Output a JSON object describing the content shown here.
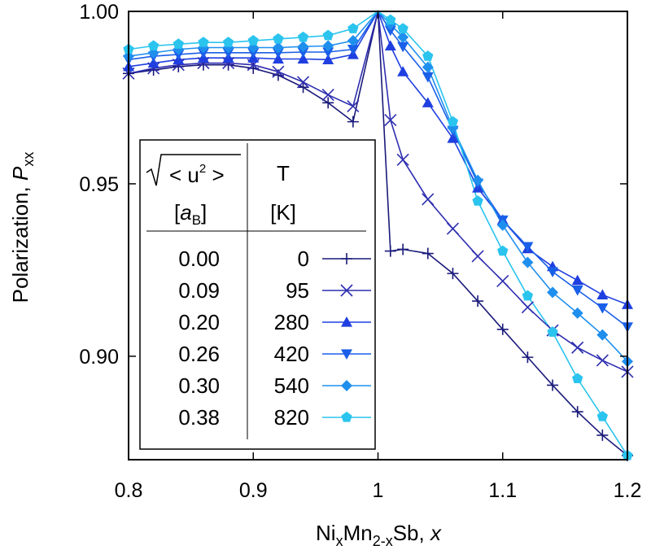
{
  "chart_data": {
    "type": "line",
    "xlabel_parts": {
      "base": "Ni",
      "sub1": "x",
      "mid": "Mn",
      "sub2": "2-x",
      "tail": "Sb, ",
      "var": "x"
    },
    "ylabel_parts": {
      "base": "Polarization, ",
      "var": "P",
      "sub": "xx"
    },
    "xlim": [
      0.8,
      1.2
    ],
    "ylim": [
      0.87,
      1.0
    ],
    "xticks": [
      0.8,
      0.9,
      1.0,
      1.1,
      1.2
    ],
    "xtick_labels": [
      "0.8",
      "0.9",
      "1",
      "1.1",
      "1.2"
    ],
    "yticks": [
      0.9,
      0.95,
      1.0
    ],
    "ytick_labels": [
      "0.90",
      "0.95",
      "1.00"
    ],
    "grid": false,
    "legend_placement": "lower-left",
    "legend": {
      "col1_header_top": "< u",
      "col1_header_sup": "2",
      "col1_header_close": " >",
      "col1_header_bottom_open": "[",
      "col1_header_bottom_var": "a",
      "col1_header_bottom_sub": "B",
      "col1_header_bottom_close": "]",
      "col2_header_top": "T",
      "col2_header_bottom": "[K]"
    },
    "series": [
      {
        "u": "0.00",
        "T": "0",
        "color": "#1a1a7a",
        "marker": "plus",
        "x": [
          0.8,
          0.82,
          0.84,
          0.86,
          0.88,
          0.9,
          0.92,
          0.94,
          0.96,
          0.98,
          1.0,
          1.01,
          1.02,
          1.04,
          1.06,
          1.08,
          1.1,
          1.12,
          1.14,
          1.16,
          1.18,
          1.2
        ],
        "y": [
          0.982,
          0.983,
          0.984,
          0.9845,
          0.9845,
          0.9835,
          0.9815,
          0.978,
          0.9735,
          0.968,
          1.0,
          0.9305,
          0.931,
          0.9298,
          0.924,
          0.916,
          0.9078,
          0.8997,
          0.8916,
          0.8839,
          0.8771,
          0.8712
        ]
      },
      {
        "u": "0.09",
        "T": "95",
        "color": "#2e2eb0",
        "marker": "x",
        "x": [
          0.8,
          0.82,
          0.84,
          0.86,
          0.88,
          0.9,
          0.92,
          0.94,
          0.96,
          0.98,
          1.0,
          1.01,
          1.02,
          1.04,
          1.06,
          1.08,
          1.1,
          1.12,
          1.14,
          1.16,
          1.18,
          1.2
        ],
        "y": [
          0.982,
          0.9835,
          0.9845,
          0.985,
          0.985,
          0.9845,
          0.9825,
          0.9795,
          0.9758,
          0.9725,
          1.0,
          0.9685,
          0.957,
          0.9455,
          0.937,
          0.929,
          0.9218,
          0.9142,
          0.9075,
          0.9025,
          0.8988,
          0.8955
        ]
      },
      {
        "u": "0.20",
        "T": "280",
        "color": "#1f3fe0",
        "marker": "triangle-up",
        "x": [
          0.8,
          0.82,
          0.84,
          0.86,
          0.88,
          0.9,
          0.92,
          0.94,
          0.96,
          0.98,
          1.0,
          1.01,
          1.02,
          1.04,
          1.06,
          1.08,
          1.1,
          1.12,
          1.14,
          1.16,
          1.18,
          1.2
        ],
        "y": [
          0.984,
          0.985,
          0.986,
          0.9865,
          0.9865,
          0.9865,
          0.9862,
          0.9862,
          0.986,
          0.9875,
          1.0,
          0.99,
          0.9825,
          0.9735,
          0.9632,
          0.9488,
          0.9395,
          0.9312,
          0.926,
          0.922,
          0.9178,
          0.915
        ]
      },
      {
        "u": "0.26",
        "T": "420",
        "color": "#1a5fe8",
        "marker": "triangle-down",
        "x": [
          0.8,
          0.82,
          0.84,
          0.86,
          0.88,
          0.9,
          0.92,
          0.94,
          0.96,
          0.98,
          1.0,
          1.01,
          1.02,
          1.04,
          1.06,
          1.08,
          1.1,
          1.12,
          1.14,
          1.16,
          1.18,
          1.2
        ],
        "y": [
          0.986,
          0.987,
          0.9875,
          0.988,
          0.988,
          0.988,
          0.988,
          0.9882,
          0.9882,
          0.989,
          1.0,
          0.9945,
          0.9898,
          0.981,
          0.9655,
          0.9502,
          0.9395,
          0.9318,
          0.9245,
          0.9192,
          0.914,
          0.9085
        ]
      },
      {
        "u": "0.30",
        "T": "540",
        "color": "#1f8fee",
        "marker": "diamond",
        "x": [
          0.8,
          0.82,
          0.84,
          0.86,
          0.88,
          0.9,
          0.92,
          0.94,
          0.96,
          0.98,
          1.0,
          1.01,
          1.02,
          1.04,
          1.06,
          1.08,
          1.1,
          1.12,
          1.14,
          1.16,
          1.18,
          1.2
        ],
        "y": [
          0.987,
          0.988,
          0.989,
          0.9895,
          0.9895,
          0.9895,
          0.9895,
          0.9898,
          0.99,
          0.9915,
          1.0,
          0.9962,
          0.9925,
          0.9838,
          0.9662,
          0.951,
          0.938,
          0.9272,
          0.9185,
          0.9125,
          0.9062,
          0.8985
        ]
      },
      {
        "u": "0.38",
        "T": "820",
        "color": "#2ac4ee",
        "marker": "pentagon",
        "x": [
          0.8,
          0.82,
          0.84,
          0.86,
          0.88,
          0.9,
          0.92,
          0.94,
          0.96,
          0.98,
          1.0,
          1.01,
          1.02,
          1.04,
          1.06,
          1.08,
          1.1,
          1.12,
          1.14,
          1.16,
          1.18,
          1.2
        ],
        "y": [
          0.989,
          0.99,
          0.9905,
          0.991,
          0.991,
          0.9915,
          0.992,
          0.9925,
          0.993,
          0.995,
          1.0,
          0.9975,
          0.995,
          0.987,
          0.968,
          0.945,
          0.9305,
          0.9175,
          0.907,
          0.8935,
          0.8825,
          0.8712
        ]
      }
    ]
  }
}
